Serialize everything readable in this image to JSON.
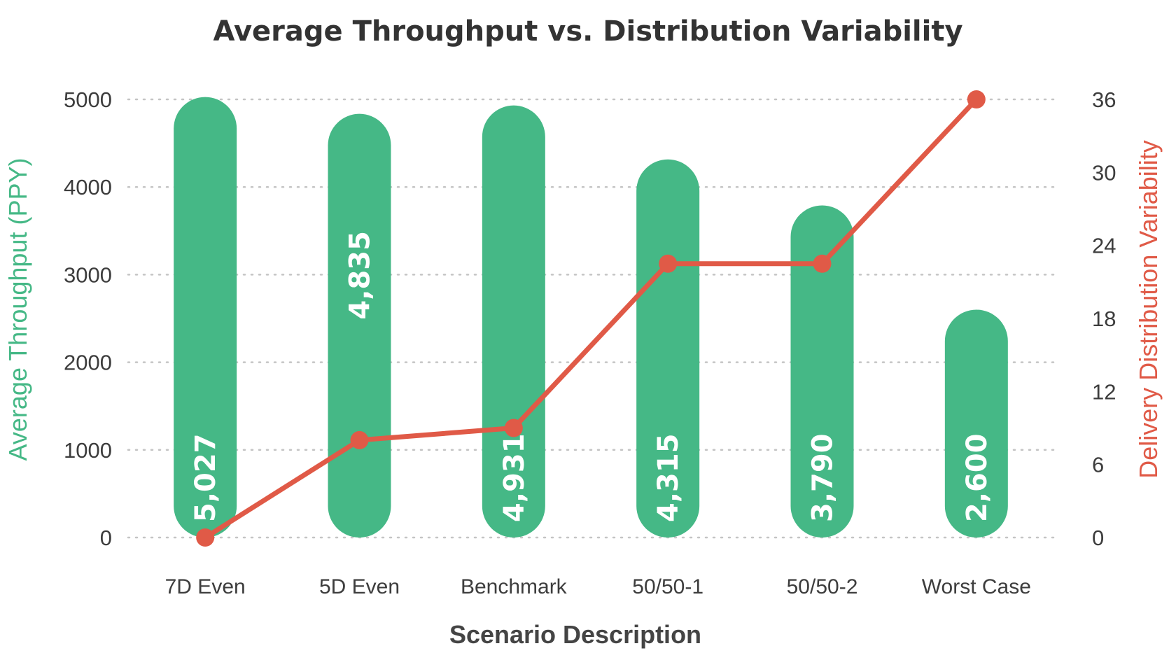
{
  "chart_data": {
    "type": "bar",
    "title": "Average Throughput vs. Distribution Variability",
    "xlabel": "Scenario Description",
    "ylabel": "Average Throughput (PPY)",
    "y2label": "Delivery Distribution Variability",
    "categories": [
      "7D Even",
      "5D Even",
      "Benchmark",
      "50/50-1",
      "50/50-2",
      "Worst Case"
    ],
    "series": [
      {
        "name": "Average Throughput (PPY)",
        "type": "bar",
        "axis": "left",
        "values": [
          5027,
          4835,
          4931,
          4315,
          3790,
          2600
        ],
        "labels": [
          "5,027",
          "4,835",
          "4,931",
          "4,315",
          "3,790",
          "2,600"
        ],
        "color": "#45b886"
      },
      {
        "name": "Delivery Distribution Variability",
        "type": "line",
        "axis": "right",
        "values": [
          0,
          8,
          9,
          22.5,
          22.5,
          36
        ],
        "color": "#e05a47"
      }
    ],
    "ylim": [
      0,
      5000
    ],
    "y2lim": [
      0,
      36
    ],
    "yticks": [
      "0",
      "1000",
      "2000",
      "3000",
      "4000",
      "5000"
    ],
    "y2ticks": [
      "0",
      "6",
      "12",
      "18",
      "24",
      "30",
      "36"
    ],
    "grid": true,
    "legend": "none"
  }
}
